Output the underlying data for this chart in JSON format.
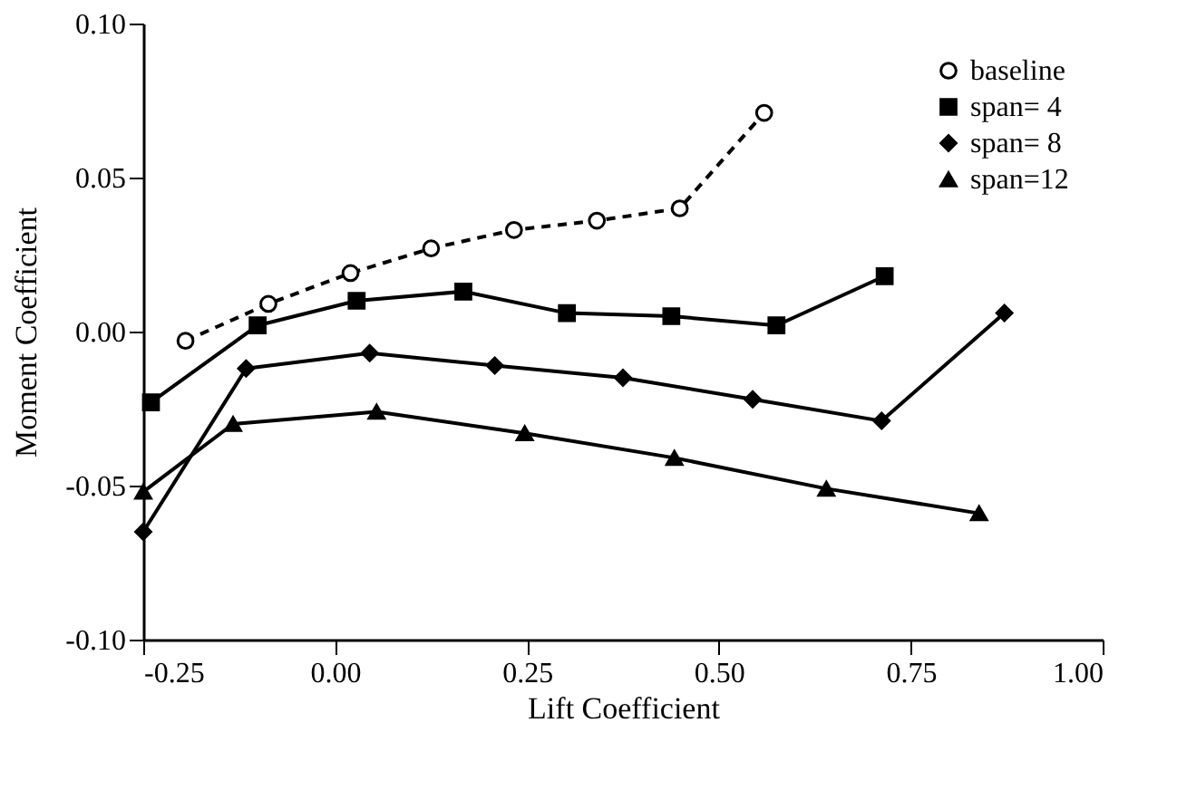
{
  "chart_data": {
    "type": "line",
    "xlabel": "Lift Coefficient",
    "ylabel": "Moment Coefficient",
    "xlim": [
      -0.25,
      1.0
    ],
    "ylim": [
      -0.1,
      0.1
    ],
    "xticks": [
      {
        "value": -0.25,
        "label": "-0.25"
      },
      {
        "value": 0,
        "label": "0.00"
      },
      {
        "value": 0.25,
        "label": "0.25"
      },
      {
        "value": 0.5,
        "label": "0.50"
      },
      {
        "value": 0.75,
        "label": "0.75"
      },
      {
        "value": 1.0,
        "label": "1.00"
      }
    ],
    "yticks": [
      {
        "value": -0.1,
        "label": "-0.10"
      },
      {
        "value": -0.05,
        "label": "-0.05"
      },
      {
        "value": 0,
        "label": "0.00"
      },
      {
        "value": 0.05,
        "label": "0.05"
      },
      {
        "value": 0.1,
        "label": "0.10"
      }
    ],
    "grid": false,
    "legend": "top right",
    "series": [
      {
        "name": "baseline",
        "color": "#000000",
        "marker": "circle",
        "line_style": "dashed",
        "x": [
          -0.195,
          -0.087,
          0.02,
          0.125,
          0.233,
          0.341,
          0.449,
          0.559
        ],
        "values": [
          -0.003,
          0.009,
          0.019,
          0.027,
          0.033,
          0.036,
          0.04,
          0.071
        ]
      },
      {
        "name": "span=  4",
        "color": "#000000",
        "marker": "square",
        "line_style": "solid",
        "x": [
          -0.24,
          -0.101,
          0.028,
          0.167,
          0.302,
          0.438,
          0.575,
          0.716
        ],
        "values": [
          -0.023,
          0.002,
          0.01,
          0.013,
          0.006,
          0.005,
          0.002,
          0.018
        ]
      },
      {
        "name": "span=  8",
        "color": "#000000",
        "marker": "diamond",
        "line_style": "solid",
        "x": [
          -0.25,
          -0.116,
          0.045,
          0.208,
          0.375,
          0.544,
          0.712,
          0.872
        ],
        "values": [
          -0.065,
          -0.012,
          -0.007,
          -0.011,
          -0.015,
          -0.022,
          -0.029,
          0.006
        ]
      },
      {
        "name": "span=12",
        "color": "#000000",
        "marker": "triangle",
        "line_style": "solid",
        "x": [
          -0.25,
          -0.133,
          0.054,
          0.247,
          0.442,
          0.64,
          0.839
        ],
        "values": [
          -0.052,
          -0.03,
          -0.026,
          -0.033,
          -0.041,
          -0.051,
          -0.059
        ]
      }
    ]
  }
}
